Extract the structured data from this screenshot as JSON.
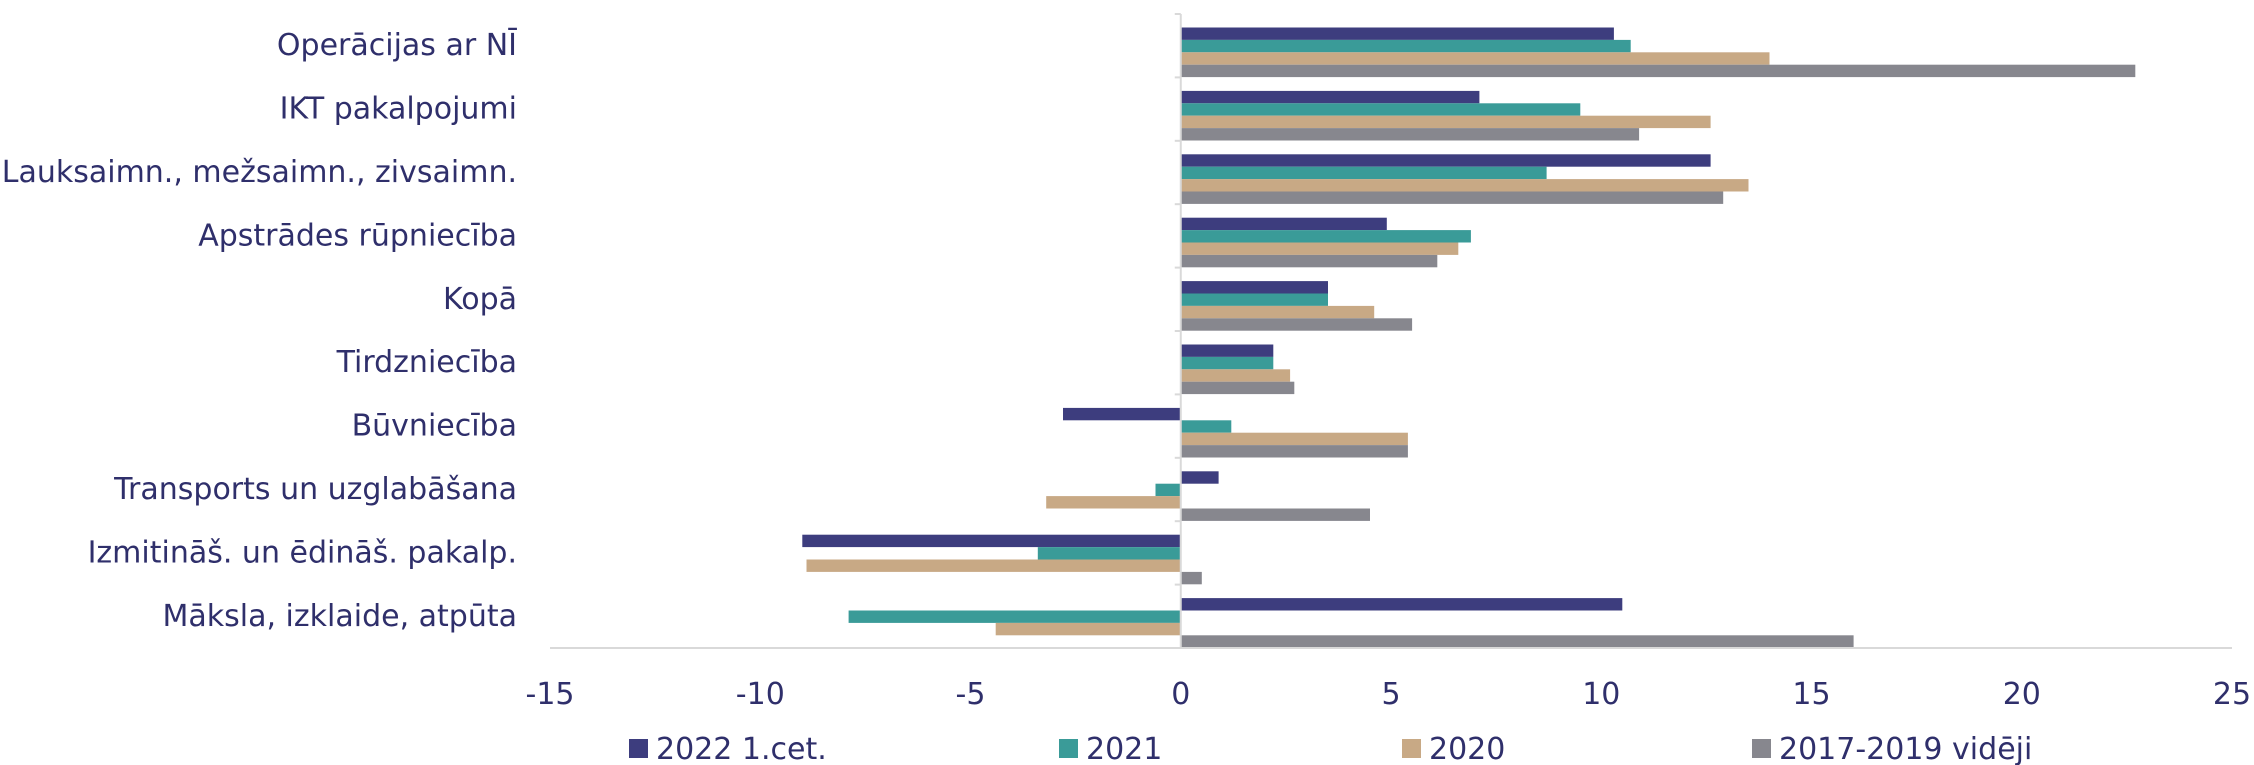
{
  "chart_data": {
    "type": "bar",
    "orientation": "horizontal",
    "categories": [
      "Operācijas ar NĪ",
      "IKT pakalpojumi",
      "Lauksaimn., mežsaimn., zivsaimn.",
      "Apstrādes rūpniecība",
      "Kopā",
      "Tirdzniecība",
      "Būvniecība",
      "Transports un uzglabāšana",
      "Izmitināš. un ēdināš. pakalp.",
      "Māksla, izklaide, atpūta"
    ],
    "series": [
      {
        "name": "2022 1.cet.",
        "color": "#3d3d7e",
        "values": [
          10.3,
          7.1,
          12.6,
          4.9,
          3.5,
          2.2,
          -2.8,
          0.9,
          -9.0,
          10.5
        ]
      },
      {
        "name": "2021",
        "color": "#3a9b98",
        "values": [
          10.7,
          9.5,
          8.7,
          6.9,
          3.5,
          2.2,
          1.2,
          -0.6,
          -3.4,
          -7.9
        ]
      },
      {
        "name": "2020",
        "color": "#c8a985",
        "values": [
          14.0,
          12.6,
          13.5,
          6.6,
          4.6,
          2.6,
          5.4,
          -3.2,
          -8.9,
          -4.4
        ]
      },
      {
        "name": "2017-2019 vidēji",
        "color": "#87878e",
        "values": [
          22.7,
          10.9,
          12.9,
          6.1,
          5.5,
          2.7,
          5.4,
          4.5,
          0.5,
          16.0
        ]
      }
    ],
    "xlim": [
      -15,
      25
    ],
    "xticks": [
      -15,
      -10,
      -5,
      0,
      5,
      10,
      15,
      20,
      25
    ],
    "legend_position": "bottom",
    "grid": false,
    "title": "",
    "xlabel": "",
    "ylabel": ""
  }
}
